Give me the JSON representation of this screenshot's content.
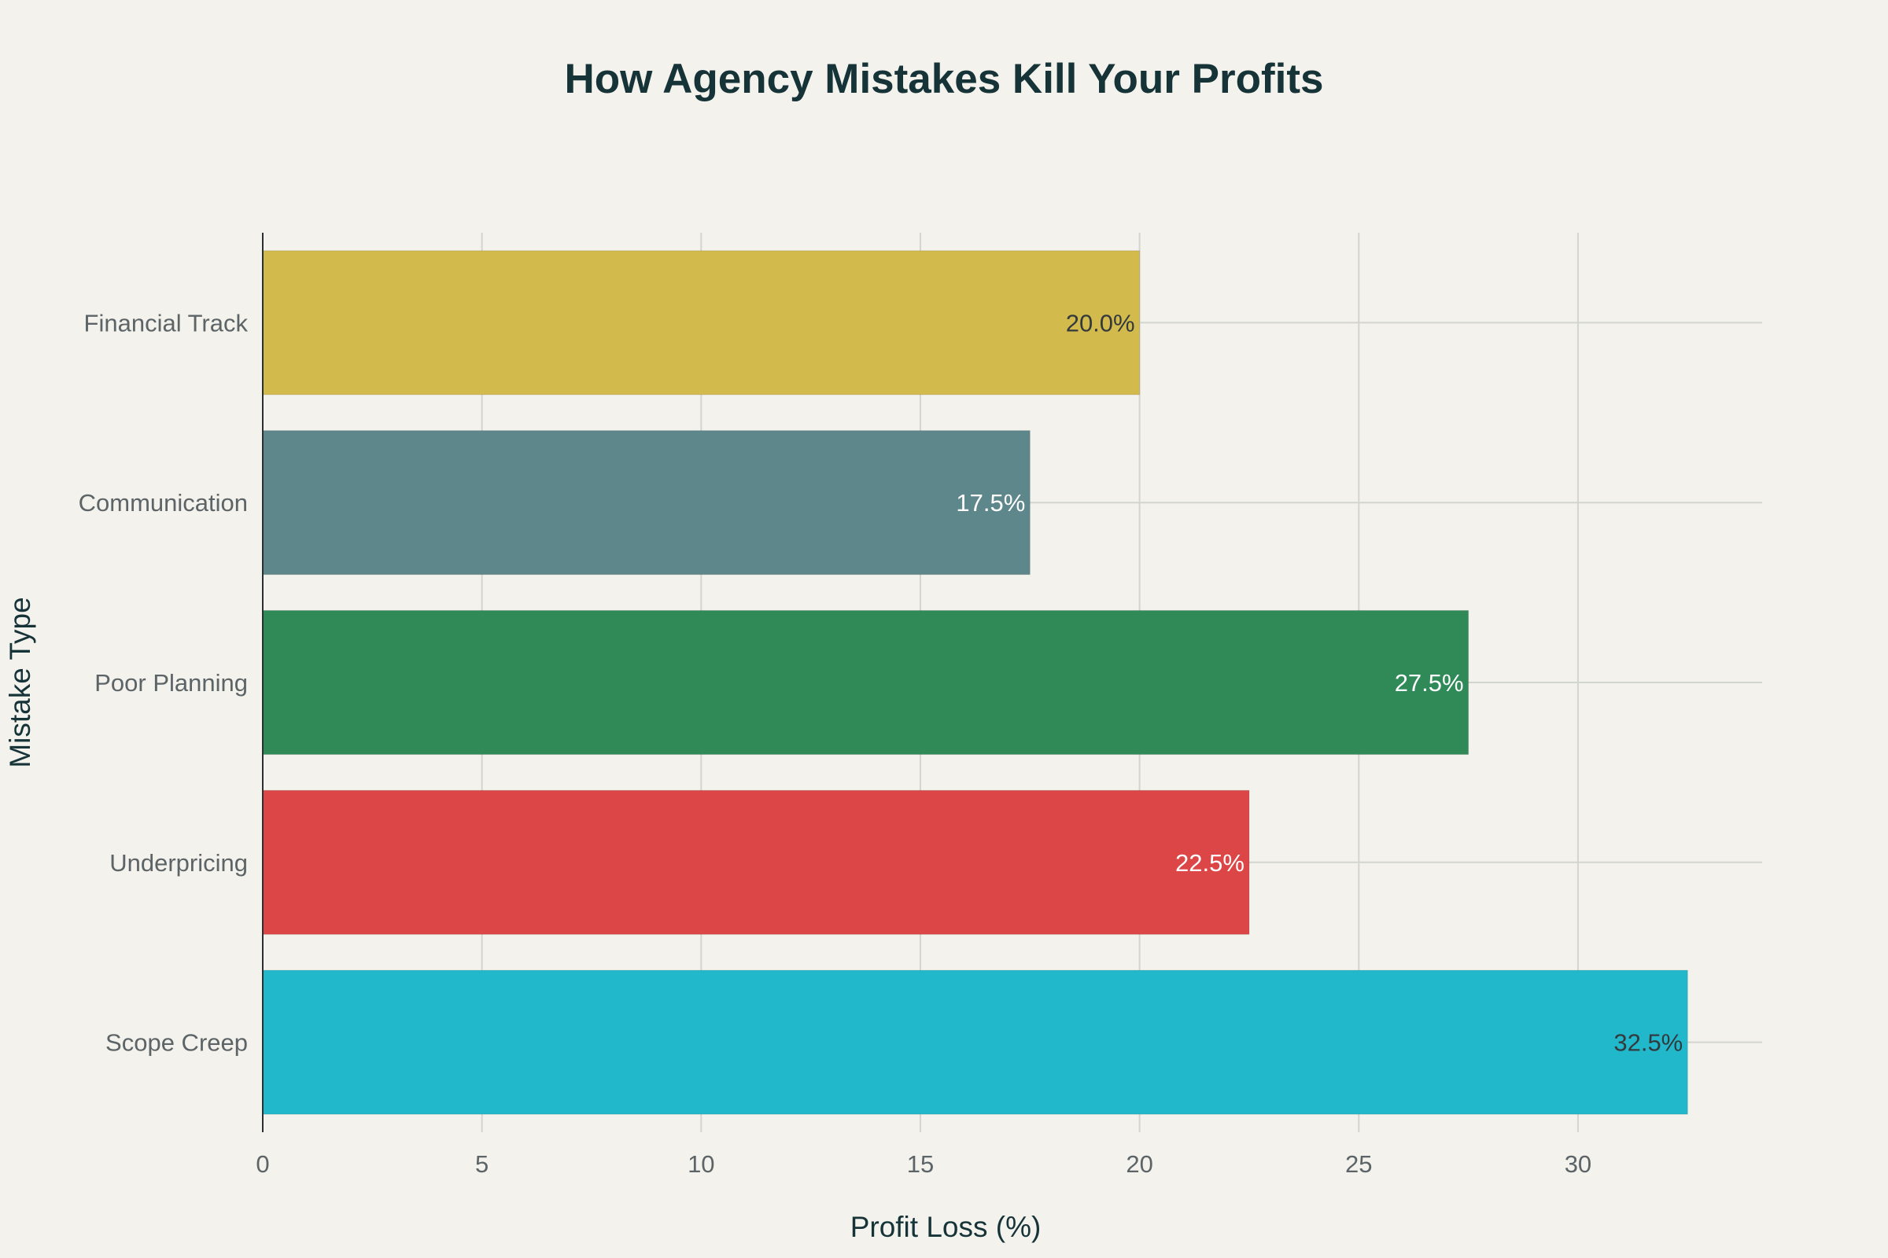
{
  "chart_data": {
    "type": "bar",
    "orientation": "horizontal",
    "title": "How Agency Mistakes Kill Your Profits",
    "xlabel": "Profit Loss (%)",
    "ylabel": "Mistake Type",
    "categories": [
      "Scope Creep",
      "Underpricing",
      "Poor Planning",
      "Communication",
      "Financial Track"
    ],
    "values": [
      32.5,
      22.5,
      27.5,
      17.5,
      20.0
    ],
    "data_labels": [
      "32.5%",
      "22.5%",
      "27.5%",
      "17.5%",
      "20.0%"
    ],
    "colors": [
      "#21b8cc",
      "#dc4646",
      "#2f8a58",
      "#5e878b",
      "#d3ba4c"
    ],
    "label_colors": [
      "#333a3d",
      "#ffffff",
      "#ffffff",
      "#ffffff",
      "#333a3d"
    ],
    "xlim": [
      0,
      34.2
    ],
    "xticks": [
      0,
      5,
      10,
      15,
      20,
      25,
      30
    ],
    "grid": true,
    "legend": "none"
  }
}
